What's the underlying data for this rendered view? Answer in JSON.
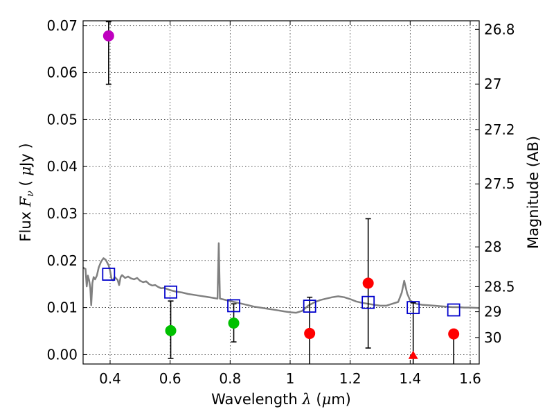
{
  "chart_data": {
    "type": "scatter",
    "title": "",
    "xlabel": "Wavelength  λ (μm)",
    "xlabel_parts": {
      "text": "Wavelength  ",
      "symbol": "λ",
      "unit_open": " (",
      "unit_mu": "μ",
      "unit_rest": "m)"
    },
    "ylabel": "Flux  Fν  ( μJy )",
    "ylabel_parts": {
      "text": "Flux  ",
      "symbol": "F",
      "subscript": "ν",
      "unit_open": "  ( ",
      "unit_mu": "μ",
      "unit_rest": "Jy )"
    },
    "y2label": "Magnitude (AB)",
    "xlim": [
      0.31,
      1.63
    ],
    "ylim": [
      -0.002,
      0.071
    ],
    "grid": true,
    "x_ticks": [
      0.4,
      0.6,
      0.8,
      1.0,
      1.2,
      1.4,
      1.6
    ],
    "x_tick_labels": [
      "0.4",
      "0.6",
      "0.8",
      "1",
      "1.2",
      "1.4",
      "1.6"
    ],
    "y_ticks": [
      0.0,
      0.01,
      0.02,
      0.03,
      0.04,
      0.05,
      0.06,
      0.07
    ],
    "y_tick_labels": [
      "0.00",
      "0.01",
      "0.02",
      "0.03",
      "0.04",
      "0.05",
      "0.06",
      "0.07"
    ],
    "y2_ticks": [
      {
        "mag": 26.8,
        "label": "26.8"
      },
      {
        "mag": 27.0,
        "label": "27"
      },
      {
        "mag": 27.2,
        "label": "27.2"
      },
      {
        "mag": 27.5,
        "label": "27.5"
      },
      {
        "mag": 28.0,
        "label": "28"
      },
      {
        "mag": 28.5,
        "label": "28.5"
      },
      {
        "mag": 29.0,
        "label": "29"
      },
      {
        "mag": 30.0,
        "label": "30"
      }
    ],
    "colors": {
      "magenta": "#bf00bf",
      "green": "#00c000",
      "red": "#ff0000",
      "model": "#808080",
      "square": "#0000cc",
      "errorbar": "#000000"
    },
    "observed": [
      {
        "x": 0.395,
        "y": 0.0678,
        "err_low": 0.0103,
        "err_high": 0.003,
        "color": "magenta",
        "marker": "circle"
      },
      {
        "x": 0.602,
        "y": 0.0051,
        "err_low": 0.0059,
        "err_high": 0.0063,
        "color": "green",
        "marker": "circle"
      },
      {
        "x": 0.812,
        "y": 0.0067,
        "err_low": 0.004,
        "err_high": 0.0041,
        "color": "green",
        "marker": "circle"
      },
      {
        "x": 1.065,
        "y": 0.0045,
        "err_low": 0.0065,
        "err_high": 0.0077,
        "color": "red",
        "marker": "circle"
      },
      {
        "x": 1.26,
        "y": 0.0152,
        "err_low": 0.0138,
        "err_high": 0.0137,
        "color": "red",
        "marker": "circle"
      },
      {
        "x": 1.41,
        "y": -0.0002,
        "err_low": 0.0018,
        "err_high": 0.0112,
        "color": "red",
        "marker": "triangle"
      },
      {
        "x": 1.545,
        "y": 0.0044,
        "err_low": 0.0064,
        "err_high": 0.0,
        "color": "red",
        "marker": "circle"
      }
    ],
    "model_photometry": [
      {
        "x": 0.395,
        "y": 0.0171
      },
      {
        "x": 0.602,
        "y": 0.0133
      },
      {
        "x": 0.812,
        "y": 0.0104
      },
      {
        "x": 1.065,
        "y": 0.0103
      },
      {
        "x": 1.26,
        "y": 0.0111
      },
      {
        "x": 1.41,
        "y": 0.01
      },
      {
        "x": 1.545,
        "y": 0.0095
      }
    ],
    "model_spectrum": [
      [
        0.31,
        0.0185
      ],
      [
        0.318,
        0.0182
      ],
      [
        0.322,
        0.0145
      ],
      [
        0.326,
        0.0168
      ],
      [
        0.33,
        0.0158
      ],
      [
        0.334,
        0.0142
      ],
      [
        0.337,
        0.0105
      ],
      [
        0.341,
        0.0152
      ],
      [
        0.345,
        0.0165
      ],
      [
        0.35,
        0.016
      ],
      [
        0.356,
        0.0168
      ],
      [
        0.362,
        0.0185
      ],
      [
        0.37,
        0.0198
      ],
      [
        0.378,
        0.0205
      ],
      [
        0.385,
        0.0202
      ],
      [
        0.39,
        0.0196
      ],
      [
        0.395,
        0.019
      ],
      [
        0.4,
        0.0178
      ],
      [
        0.405,
        0.016
      ],
      [
        0.41,
        0.0158
      ],
      [
        0.415,
        0.0165
      ],
      [
        0.42,
        0.0162
      ],
      [
        0.425,
        0.0159
      ],
      [
        0.43,
        0.0148
      ],
      [
        0.435,
        0.0165
      ],
      [
        0.44,
        0.0169
      ],
      [
        0.45,
        0.0163
      ],
      [
        0.46,
        0.0166
      ],
      [
        0.47,
        0.0162
      ],
      [
        0.48,
        0.016
      ],
      [
        0.49,
        0.0163
      ],
      [
        0.5,
        0.0157
      ],
      [
        0.51,
        0.0154
      ],
      [
        0.52,
        0.0156
      ],
      [
        0.53,
        0.015
      ],
      [
        0.54,
        0.0147
      ],
      [
        0.55,
        0.0148
      ],
      [
        0.56,
        0.0144
      ],
      [
        0.57,
        0.0141
      ],
      [
        0.58,
        0.0142
      ],
      [
        0.6,
        0.0137
      ],
      [
        0.62,
        0.0134
      ],
      [
        0.64,
        0.0132
      ],
      [
        0.66,
        0.0129
      ],
      [
        0.68,
        0.0127
      ],
      [
        0.7,
        0.0125
      ],
      [
        0.72,
        0.0123
      ],
      [
        0.74,
        0.0121
      ],
      [
        0.75,
        0.012
      ],
      [
        0.758,
        0.0119
      ],
      [
        0.762,
        0.0237
      ],
      [
        0.766,
        0.0119
      ],
      [
        0.78,
        0.0117
      ],
      [
        0.8,
        0.0114
      ],
      [
        0.82,
        0.0111
      ],
      [
        0.84,
        0.0108
      ],
      [
        0.86,
        0.0105
      ],
      [
        0.88,
        0.0102
      ],
      [
        0.9,
        0.01
      ],
      [
        0.92,
        0.0098
      ],
      [
        0.94,
        0.0096
      ],
      [
        0.96,
        0.0094
      ],
      [
        0.98,
        0.0092
      ],
      [
        1.0,
        0.009
      ],
      [
        1.02,
        0.0089
      ],
      [
        1.04,
        0.0093
      ],
      [
        1.06,
        0.0104
      ],
      [
        1.08,
        0.0111
      ],
      [
        1.1,
        0.0116
      ],
      [
        1.12,
        0.0119
      ],
      [
        1.14,
        0.0122
      ],
      [
        1.16,
        0.0124
      ],
      [
        1.18,
        0.0122
      ],
      [
        1.2,
        0.0118
      ],
      [
        1.22,
        0.0113
      ],
      [
        1.24,
        0.011
      ],
      [
        1.26,
        0.0108
      ],
      [
        1.28,
        0.0106
      ],
      [
        1.3,
        0.0104
      ],
      [
        1.32,
        0.0104
      ],
      [
        1.34,
        0.0108
      ],
      [
        1.36,
        0.0112
      ],
      [
        1.372,
        0.0132
      ],
      [
        1.38,
        0.0157
      ],
      [
        1.39,
        0.013
      ],
      [
        1.4,
        0.0115
      ],
      [
        1.42,
        0.0108
      ],
      [
        1.44,
        0.0106
      ],
      [
        1.46,
        0.0105
      ],
      [
        1.48,
        0.0104
      ],
      [
        1.5,
        0.0103
      ],
      [
        1.52,
        0.0102
      ],
      [
        1.54,
        0.0101
      ],
      [
        1.56,
        0.0101
      ],
      [
        1.58,
        0.01
      ],
      [
        1.6,
        0.01
      ],
      [
        1.63,
        0.0099
      ]
    ]
  }
}
